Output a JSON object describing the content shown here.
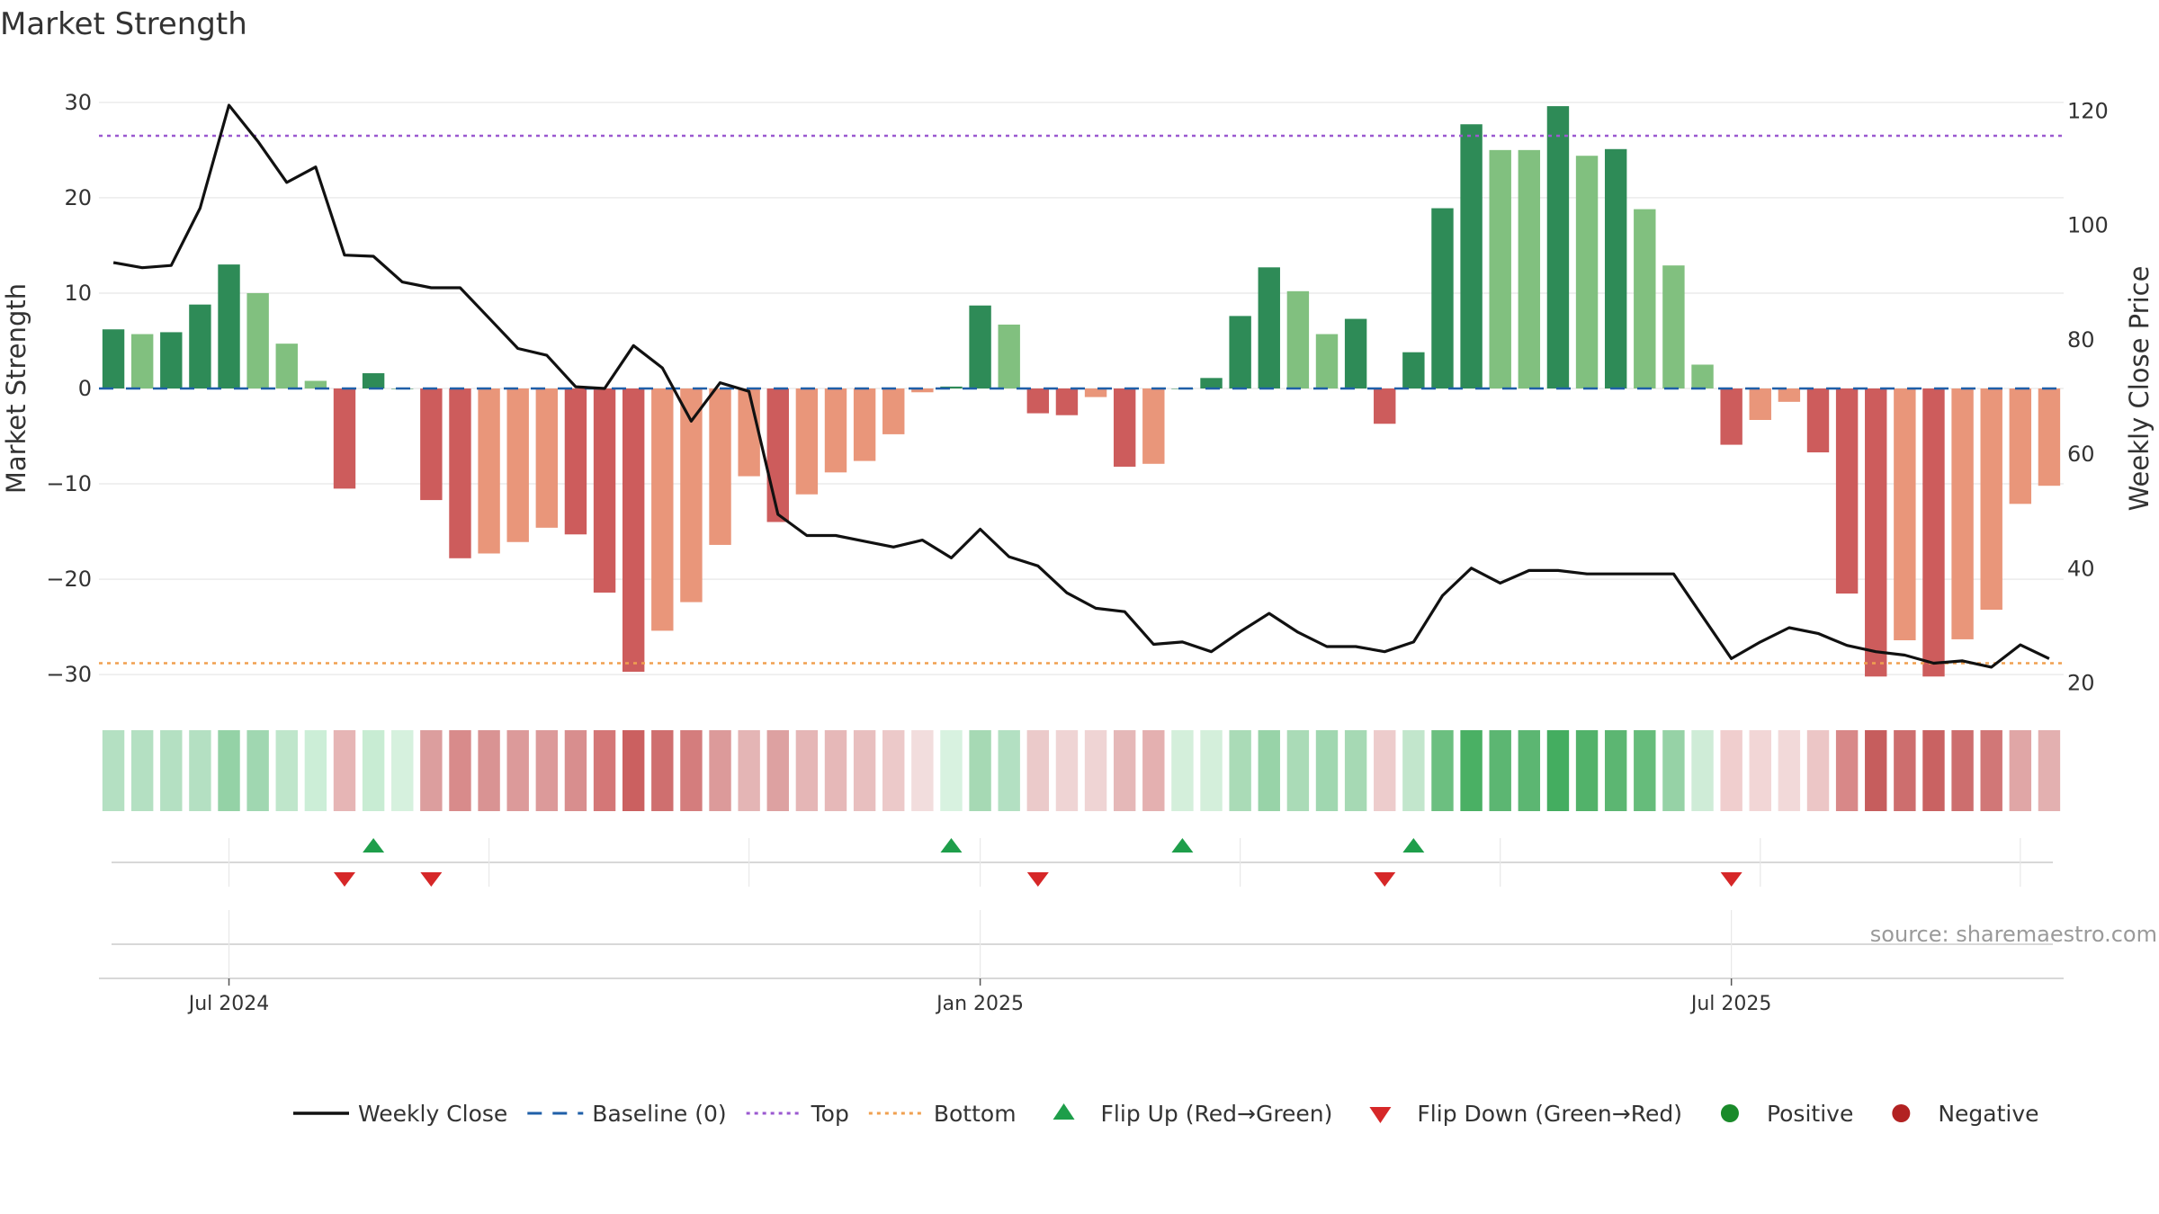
{
  "chart_data": {
    "type": "bar",
    "title": "Market Strength",
    "ylabel": "Market Strength",
    "y2label": "Weekly Close Price",
    "ylim": [
      -33,
      33
    ],
    "y2lim": [
      16.5,
      126.5
    ],
    "yticks": [
      30,
      20,
      10,
      0,
      -10,
      -20,
      -30
    ],
    "yticklabels": [
      "30",
      "20",
      "10",
      "0",
      "−10",
      "−20",
      "−30"
    ],
    "y2ticks": [
      120,
      100,
      80,
      60,
      40,
      20
    ],
    "y2ticklabels": [
      "120",
      "100",
      "80",
      "60",
      "40",
      "20"
    ],
    "xtick_weeks": [
      4.5,
      30.5,
      56.5
    ],
    "xticklabels": [
      "Jul 2024",
      "Jan 2025",
      "Jul 2025"
    ],
    "week_count": 68,
    "top_line": 26.5,
    "bottom_line": -28.8,
    "baseline": 0,
    "series": [
      {
        "name": "Market Strength",
        "values": [
          6.2,
          5.7,
          5.9,
          8.8,
          13.0,
          10.0,
          4.7,
          0.8,
          -10.5,
          1.6,
          0.0,
          -11.7,
          -17.8,
          -17.3,
          -16.1,
          -14.6,
          -15.3,
          -21.4,
          -29.7,
          -25.4,
          -22.4,
          -16.4,
          -9.2,
          -14.0,
          -11.1,
          -8.8,
          -7.6,
          -4.8,
          -0.4,
          0.2,
          8.7,
          6.7,
          -2.6,
          -2.8,
          -0.9,
          -8.2,
          -7.9,
          0.0,
          1.1,
          7.6,
          12.7,
          10.2,
          5.7,
          7.3,
          -3.7,
          3.8,
          18.9,
          27.7,
          25.0,
          25.0,
          29.6,
          24.4,
          25.1,
          18.8,
          12.9,
          2.5,
          -5.9,
          -3.3,
          -1.4,
          -6.7,
          -21.5,
          -30.2,
          -26.4,
          -30.2,
          -26.3,
          -23.2,
          -12.1,
          -10.2
        ],
        "colors": [
          "#2e8b57",
          "#81c07f",
          "#2e8b57",
          "#2e8b57",
          "#2e8b57",
          "#81c07f",
          "#81c07f",
          "#81c07f",
          "#cd5c5c",
          "#2e8b57",
          "#2e8b57",
          "#cd5c5c",
          "#cd5c5c",
          "#e9967a",
          "#e9967a",
          "#e9967a",
          "#cd5c5c",
          "#cd5c5c",
          "#cd5c5c",
          "#e9967a",
          "#e9967a",
          "#e9967a",
          "#e9967a",
          "#cd5c5c",
          "#e9967a",
          "#e9967a",
          "#e9967a",
          "#e9967a",
          "#e9967a",
          "#2e8b57",
          "#2e8b57",
          "#81c07f",
          "#cd5c5c",
          "#cd5c5c",
          "#e9967a",
          "#cd5c5c",
          "#e9967a",
          "#2e8b57",
          "#2e8b57",
          "#2e8b57",
          "#2e8b57",
          "#81c07f",
          "#81c07f",
          "#2e8b57",
          "#cd5c5c",
          "#2e8b57",
          "#2e8b57",
          "#2e8b57",
          "#81c07f",
          "#81c07f",
          "#2e8b57",
          "#81c07f",
          "#2e8b57",
          "#81c07f",
          "#81c07f",
          "#81c07f",
          "#cd5c5c",
          "#e9967a",
          "#e9967a",
          "#cd5c5c",
          "#cd5c5c",
          "#cd5c5c",
          "#e9967a",
          "#cd5c5c",
          "#e9967a",
          "#e9967a",
          "#e9967a",
          "#e9967a"
        ]
      },
      {
        "name": "Weekly Close",
        "values": [
          93.5,
          92.6,
          93.0,
          103.0,
          121.0,
          114.7,
          107.5,
          110.2,
          94.8,
          94.6,
          90.1,
          89.1,
          89.1,
          83.8,
          78.5,
          77.3,
          71.8,
          71.5,
          79.0,
          75.1,
          65.8,
          72.5,
          71.0,
          49.5,
          45.8,
          45.8,
          44.8,
          43.8,
          45.0,
          41.9,
          46.9,
          42.1,
          40.5,
          35.8,
          33.1,
          32.5,
          26.8,
          27.2,
          25.5,
          29.0,
          32.2,
          28.9,
          26.4,
          26.4,
          25.5,
          27.2,
          35.3,
          40.1,
          37.5,
          39.7,
          39.7,
          39.1,
          39.1,
          39.1,
          39.1,
          31.7,
          24.3,
          27.2,
          29.7,
          28.7,
          26.6,
          25.5,
          24.9,
          23.5,
          23.9,
          22.8,
          26.7,
          24.3
        ]
      }
    ],
    "strip_colors": [
      "#b4e0c2",
      "#b4e0c2",
      "#b4e0c2",
      "#b4e0c2",
      "#94d2a6",
      "#a0d7b1",
      "#bfe6cb",
      "#cceed7",
      "#e6b5b5",
      "#c8ecd3",
      "#d6f1de",
      "#dc9e9e",
      "#d88b8b",
      "#d99393",
      "#dc9a9a",
      "#dc9a9a",
      "#d88e8e",
      "#d47777",
      "#cb6060",
      "#cf6f6f",
      "#d47d7d",
      "#dc9a9a",
      "#e4b5b5",
      "#dda1a1",
      "#e5b6b6",
      "#e6b8b8",
      "#e8bfbf",
      "#ecc9c9",
      "#f2dddd",
      "#d8f2e0",
      "#a6d9b4",
      "#b3e0c2",
      "#ebcaca",
      "#efd4d4",
      "#efd4d4",
      "#e5b8b8",
      "#e4b0b0",
      "#d4efdb",
      "#d4efdb",
      "#aadbb7",
      "#98d3a8",
      "#aadbb7",
      "#a0d7b0",
      "#a6d9b4",
      "#edcccc",
      "#c2e6cc",
      "#6cbf80",
      "#4ab064",
      "#5cb672",
      "#5cb672",
      "#44ad60",
      "#52b26a",
      "#5cb672",
      "#66bc7b",
      "#96d2a6",
      "#cfecd7",
      "#f0cece",
      "#f2d6d6",
      "#f2d9d9",
      "#ecc6c6",
      "#d88888",
      "#c65d5d",
      "#cd6e6e",
      "#c96262",
      "#cd6e6e",
      "#d17777",
      "#e0a6a6",
      "#e3b0b0"
    ],
    "flips_up": [
      9,
      29,
      37,
      45
    ],
    "flips_down": [
      8,
      11,
      32,
      44,
      56
    ],
    "legend": [
      {
        "label": "Weekly Close",
        "marker": "line",
        "color": "#111111"
      },
      {
        "label": "Baseline (0)",
        "marker": "dash",
        "color": "#1f5fa8"
      },
      {
        "label": "Top",
        "marker": "dot",
        "color": "#9b59d0"
      },
      {
        "label": "Bottom",
        "marker": "dot",
        "color": "#f0a050"
      },
      {
        "label": "Flip Up (Red→Green)",
        "marker": "tri-up",
        "color": "#1e9e4a"
      },
      {
        "label": "Flip Down (Green→Red)",
        "marker": "tri-down",
        "color": "#d62728"
      },
      {
        "label": "Positive",
        "marker": "circle",
        "color": "#1a8a2a"
      },
      {
        "label": "Negative",
        "marker": "circle",
        "color": "#b22222"
      }
    ],
    "source": "source: sharemaestro.com"
  }
}
